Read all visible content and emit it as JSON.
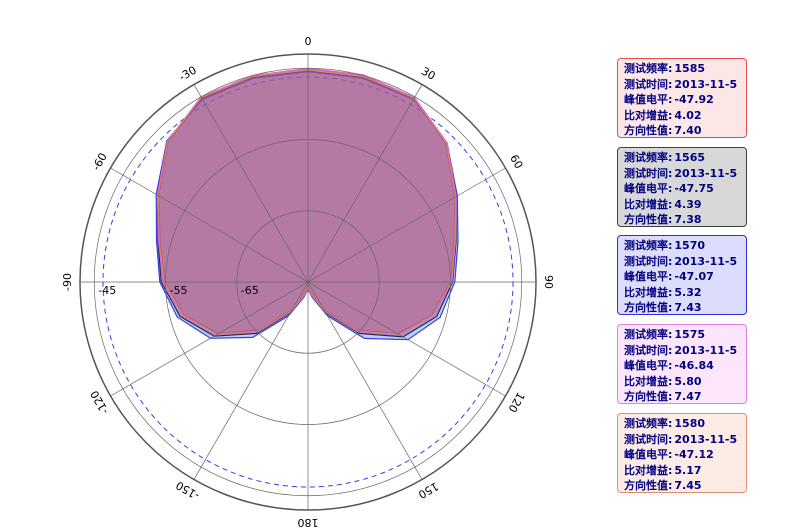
{
  "chart_data": {
    "type": "polar",
    "theta": [
      0,
      15,
      30,
      45,
      60,
      75,
      90,
      105,
      120,
      135,
      150,
      165,
      180,
      195,
      210,
      225,
      240,
      255,
      270,
      285,
      300,
      315,
      330,
      345
    ],
    "thetaticks": [
      0,
      30,
      60,
      90,
      120,
      150,
      180,
      -150,
      -120,
      -90,
      -60,
      -30
    ],
    "rlim": [
      -75,
      -43
    ],
    "rticks": [
      -65,
      -55,
      -45
    ],
    "series": [
      {
        "color": "#d04060",
        "values": [
          -45.1,
          -45.0,
          -45.2,
          -47.6,
          -51.2,
          -53.8,
          -55.0,
          -57.0,
          -60.5,
          -65.5,
          -70.5,
          -73.5,
          -74.5,
          -73.5,
          -70.5,
          -65.5,
          -60.5,
          -57.0,
          -54.9,
          -53.5,
          -50.8,
          -47.2,
          -45.2,
          -45.1
        ]
      },
      {
        "color": "#202020",
        "values": [
          -45.4,
          -45.3,
          -45.3,
          -47.5,
          -51.0,
          -53.5,
          -54.7,
          -56.3,
          -59.6,
          -64.8,
          -70.0,
          -73.0,
          -74.0,
          -73.0,
          -70.0,
          -64.8,
          -59.8,
          -56.4,
          -54.4,
          -53.2,
          -50.6,
          -47.0,
          -45.3,
          -45.3
        ]
      },
      {
        "color": "#3040e0",
        "values": [
          -45.5,
          -45.4,
          -45.4,
          -47.4,
          -50.8,
          -53.2,
          -54.4,
          -55.8,
          -58.8,
          -63.8,
          -69.5,
          -72.8,
          -74.0,
          -72.8,
          -69.5,
          -64.0,
          -59.2,
          -56.0,
          -54.2,
          -53.0,
          -50.4,
          -47.0,
          -45.4,
          -45.4
        ]
      },
      {
        "color": "#e060e0",
        "values": [
          -45.0,
          -44.9,
          -45.1,
          -47.4,
          -51.0,
          -53.6,
          -54.8,
          -56.8,
          -60.2,
          -65.2,
          -70.2,
          -73.2,
          -74.2,
          -73.2,
          -70.2,
          -65.2,
          -60.2,
          -56.8,
          -54.7,
          -53.3,
          -50.6,
          -47.1,
          -45.0,
          -45.0
        ]
      },
      {
        "color": "#e08060",
        "values": [
          -45.2,
          -45.1,
          -45.2,
          -47.5,
          -51.1,
          -53.7,
          -54.9,
          -56.9,
          -60.3,
          -65.3,
          -70.3,
          -73.3,
          -74.3,
          -73.3,
          -70.3,
          -65.3,
          -60.3,
          -56.9,
          -54.8,
          -53.4,
          -50.7,
          -47.1,
          -45.1,
          -45.1
        ]
      }
    ]
  },
  "legend_boxes": [
    {
      "lines": [
        [
          "测试频率:",
          "1585"
        ],
        [
          "测试时间:",
          "2013-11-5"
        ],
        [
          "峰值电平:",
          "-47.92"
        ],
        [
          "比对增益:",
          "4.02"
        ],
        [
          "方向性值:",
          "7.40"
        ]
      ]
    },
    {
      "lines": [
        [
          "测试频率:",
          "1565"
        ],
        [
          "测试时间:",
          "2013-11-5"
        ],
        [
          "峰值电平:",
          "-47.75"
        ],
        [
          "比对增益:",
          "4.39"
        ],
        [
          "方向性值:",
          "7.38"
        ]
      ]
    },
    {
      "lines": [
        [
          "测试频率:",
          "1570"
        ],
        [
          "测试时间:",
          "2013-11-5"
        ],
        [
          "峰值电平:",
          "-47.07"
        ],
        [
          "比对增益:",
          "5.32"
        ],
        [
          "方向性值:",
          "7.43"
        ]
      ]
    },
    {
      "lines": [
        [
          "测试频率:",
          "1575"
        ],
        [
          "测试时间:",
          "2013-11-5"
        ],
        [
          "峰值电平:",
          "-46.84"
        ],
        [
          "比对增益:",
          "5.80"
        ],
        [
          "方向性值:",
          "7.47"
        ]
      ]
    },
    {
      "lines": [
        [
          "测试频率:",
          "1580"
        ],
        [
          "测试时间:",
          "2013-11-5"
        ],
        [
          "峰值电平:",
          "-47.12"
        ],
        [
          "比对增益:",
          "5.17"
        ],
        [
          "方向性值:",
          "7.45"
        ]
      ]
    }
  ]
}
